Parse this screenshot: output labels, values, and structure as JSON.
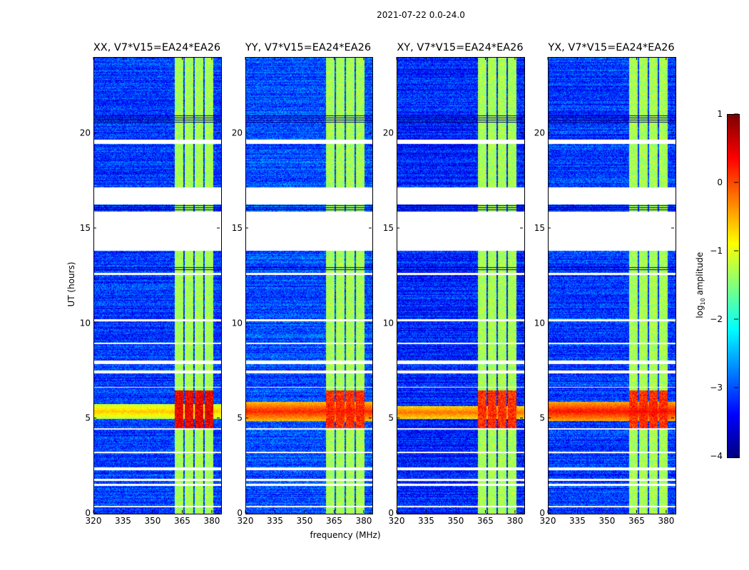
{
  "suptitle": "2021-07-22 0.0-24.0",
  "chart_data": {
    "type": "heatmap",
    "title": "2021-07-22 0.0-24.0",
    "xlabel": "frequency (MHz)",
    "ylabel": "UT (hours)",
    "xlim": [
      320,
      384
    ],
    "ylim": [
      0,
      24
    ],
    "xticks": [
      320,
      335,
      350,
      365,
      380
    ],
    "yticks": [
      0,
      5,
      10,
      15,
      20
    ],
    "colormap": "jet",
    "colorbar": {
      "label": "log10 amplitude",
      "label_main": "log",
      "label_sub": "10",
      "label_rest": " amplitude",
      "range": [
        -4,
        1
      ],
      "ticks": [
        1,
        0,
        -1,
        -2,
        -3,
        -4
      ]
    },
    "panels": [
      {
        "title": "XX, V7*V15=EA24*EA26",
        "background_level": -3.1,
        "strong_band_level": -0.3,
        "rfi_band_hours": [
          5.0,
          5.8
        ],
        "rfi_band_level": -0.6
      },
      {
        "title": "YY, V7*V15=EA24*EA26",
        "background_level": -3.0,
        "strong_band_level": -0.6,
        "rfi_band_hours": [
          4.9,
          5.9
        ],
        "rfi_band_level": 0.2
      },
      {
        "title": "XY, V7*V15=EA24*EA26",
        "background_level": -3.2,
        "strong_band_level": -0.6,
        "rfi_band_hours": [
          5.0,
          5.7
        ],
        "rfi_band_level": -0.2
      },
      {
        "title": "YX, V7*V15=EA24*EA26",
        "background_level": -3.1,
        "strong_band_level": -0.6,
        "rfi_band_hours": [
          4.9,
          5.9
        ],
        "rfi_band_level": 0.3
      }
    ],
    "bright_channel_range_mhz": [
      360.4,
      380.0
    ],
    "channel_gaps_mhz": [
      365.1,
      370.2,
      375.2,
      380.5
    ],
    "strong_rfi_block_hours": [
      4.5,
      6.5
    ],
    "flagged_time_ranges_hours": [
      [
        13.85,
        15.9
      ],
      [
        16.3,
        17.2
      ],
      [
        19.5,
        19.7
      ],
      [
        0.35,
        0.42
      ],
      [
        1.5,
        1.6
      ],
      [
        1.75,
        1.85
      ],
      [
        2.3,
        2.45
      ],
      [
        3.2,
        3.28
      ],
      [
        7.4,
        7.55
      ],
      [
        7.9,
        8.1
      ],
      [
        10.15,
        10.25
      ],
      [
        12.6,
        12.7
      ],
      [
        8.95,
        9.02
      ],
      [
        4.45,
        4.5
      ],
      [
        6.65,
        6.7
      ]
    ],
    "dark_flag_lines_hours": [
      [
        15.9,
        16.3
      ],
      [
        12.8,
        13.0
      ],
      [
        20.6,
        21.0
      ]
    ]
  }
}
